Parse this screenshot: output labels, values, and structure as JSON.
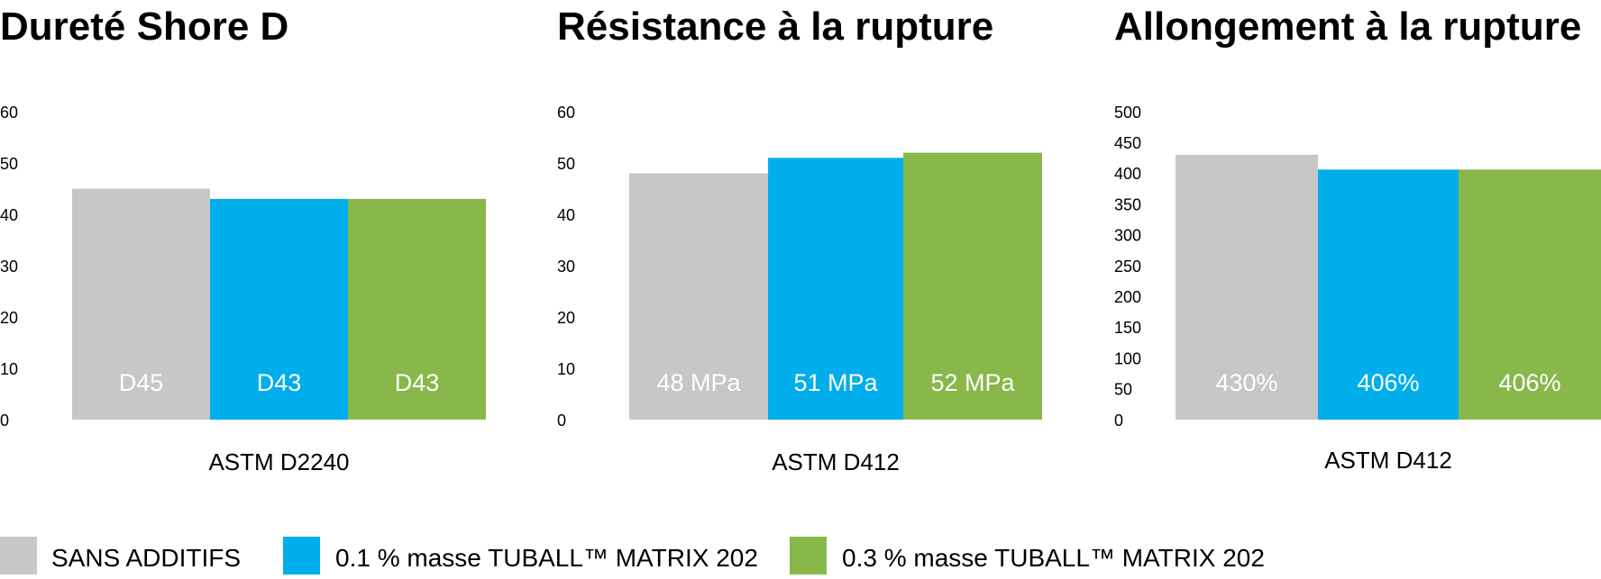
{
  "chart_data": [
    {
      "type": "bar",
      "title": "Dureté Shore D",
      "categories": [
        "ASTM D2240"
      ],
      "ylim": [
        0,
        60
      ],
      "yticks": [
        0,
        10,
        20,
        30,
        40,
        50,
        60
      ],
      "series": [
        {
          "name": "SANS ADDITIFS",
          "values": [
            45
          ],
          "labels": [
            "D45"
          ],
          "color": "#C6C7C6"
        },
        {
          "name": "0.1 % masse TUBALL™ MATRIX 202",
          "values": [
            43
          ],
          "labels": [
            "D43"
          ],
          "color": "#00AEEB"
        },
        {
          "name": "0.3 % masse TUBALL™ MATRIX 202",
          "values": [
            43
          ],
          "labels": [
            "D43"
          ],
          "color": "#88B84A"
        }
      ],
      "grid": false
    },
    {
      "type": "bar",
      "title": "Résistance à la rupture",
      "categories": [
        "ASTM D412"
      ],
      "ylim": [
        0,
        60
      ],
      "yticks": [
        0,
        10,
        20,
        30,
        40,
        50,
        60
      ],
      "series": [
        {
          "name": "SANS ADDITIFS",
          "values": [
            48
          ],
          "labels": [
            "48 MPa"
          ],
          "color": "#C6C7C6"
        },
        {
          "name": "0.1 % masse TUBALL™ MATRIX 202",
          "values": [
            51
          ],
          "labels": [
            "51 MPa"
          ],
          "color": "#00AEEB"
        },
        {
          "name": "0.3 % masse TUBALL™ MATRIX 202",
          "values": [
            52
          ],
          "labels": [
            "52 MPa"
          ],
          "color": "#88B84A"
        }
      ],
      "grid": false
    },
    {
      "type": "bar",
      "title": "Allongement à la rupture",
      "categories": [
        "ASTM D412"
      ],
      "ylim": [
        0,
        500
      ],
      "yticks": [
        0,
        50,
        100,
        150,
        200,
        250,
        300,
        350,
        400,
        450,
        500
      ],
      "series": [
        {
          "name": "SANS ADDITIFS",
          "values": [
            430
          ],
          "labels": [
            "430%"
          ],
          "color": "#C6C7C6"
        },
        {
          "name": "0.1 % masse TUBALL™ MATRIX 202",
          "values": [
            406
          ],
          "labels": [
            "406%"
          ],
          "color": "#00AEEB"
        },
        {
          "name": "0.3 % masse TUBALL™ MATRIX 202",
          "values": [
            406
          ],
          "labels": [
            "406%"
          ],
          "color": "#88B84A"
        }
      ],
      "grid": false
    }
  ],
  "legend": {
    "placement": "bottom",
    "items": [
      {
        "label": "SANS ADDITIFS",
        "color": "#C6C7C6"
      },
      {
        "label": "0.1 % masse TUBALL™ MATRIX 202",
        "color": "#00AEEB"
      },
      {
        "label": "0.3 % masse TUBALL™ MATRIX 202",
        "color": "#88B84A"
      }
    ]
  }
}
